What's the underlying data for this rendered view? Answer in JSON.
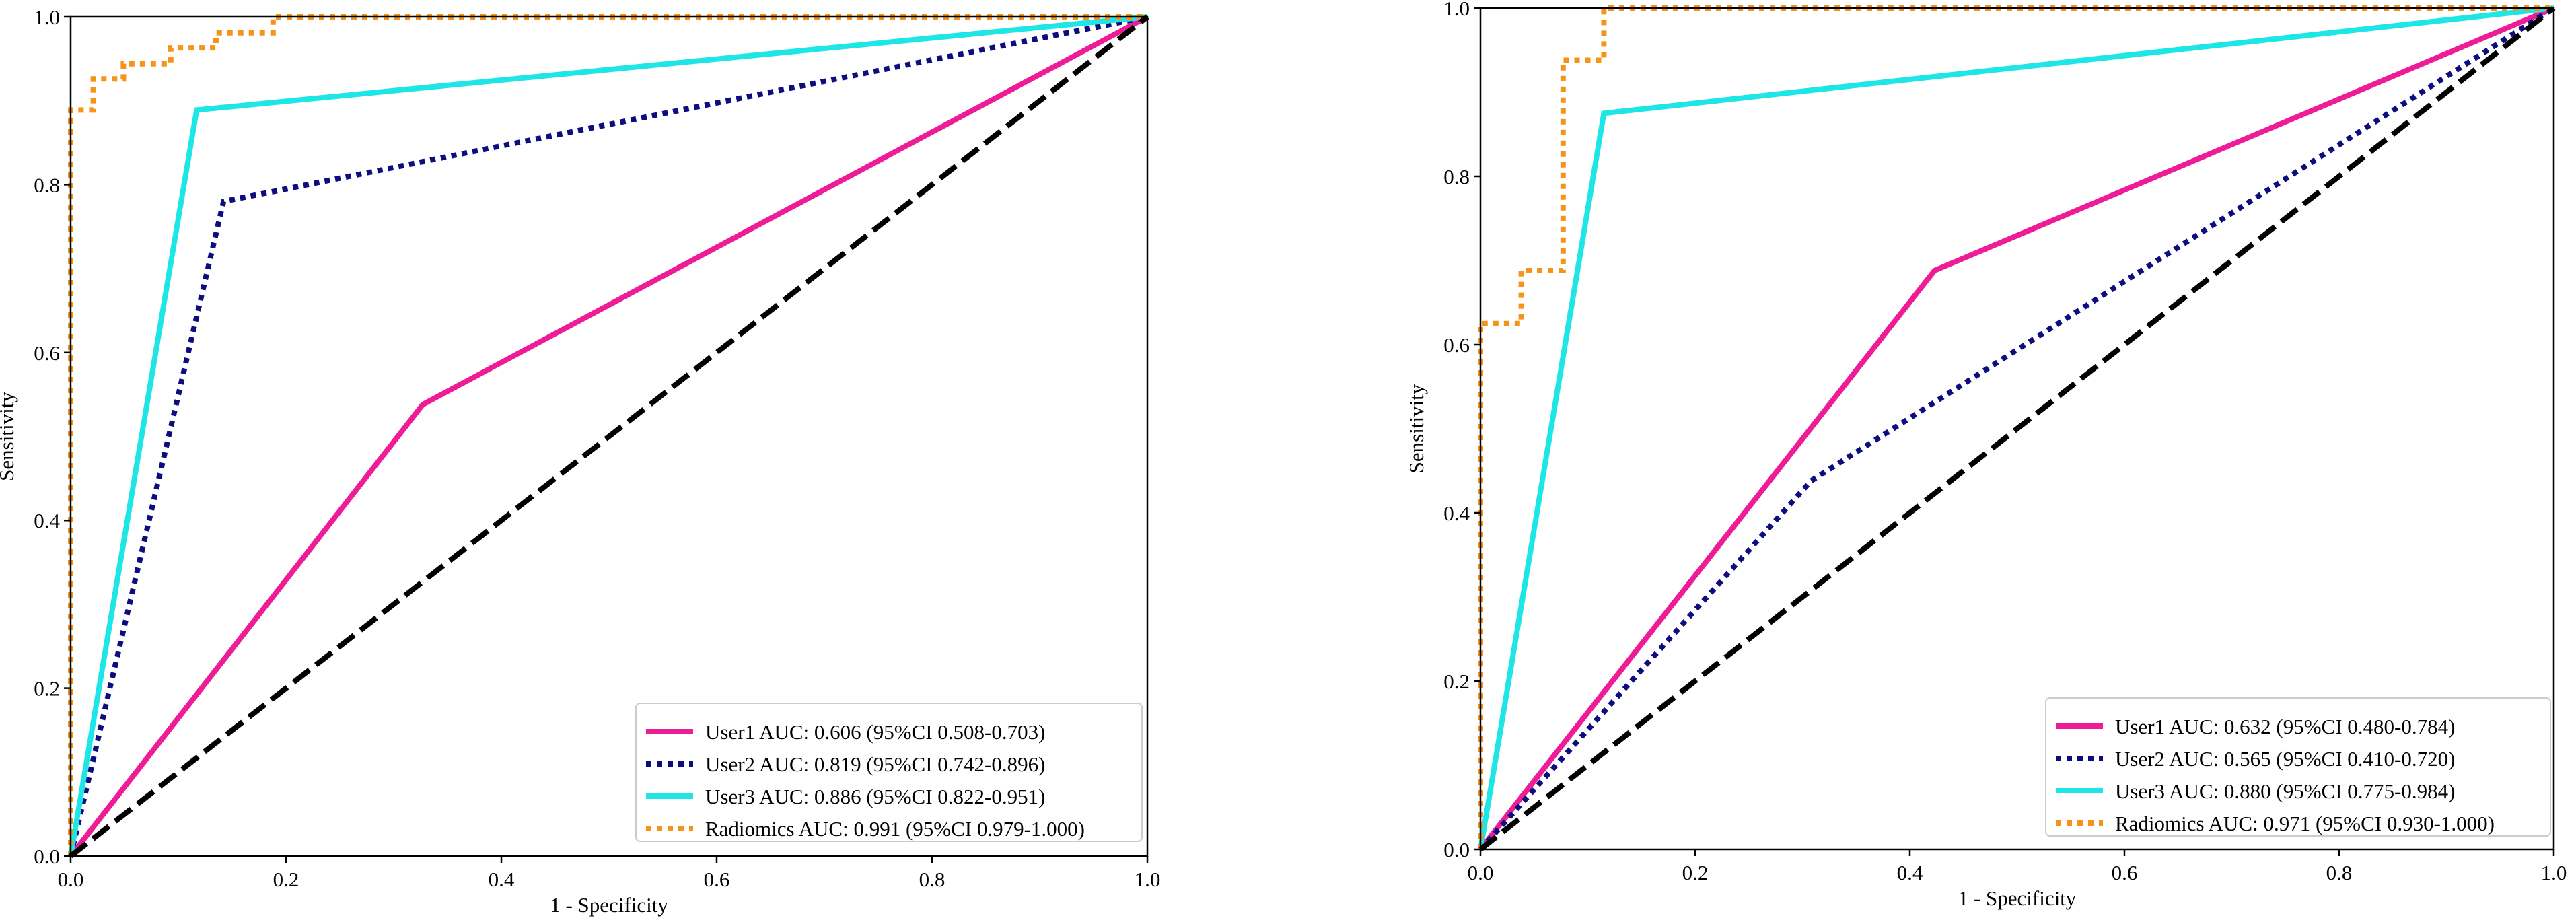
{
  "chart_data": [
    {
      "type": "line",
      "xlabel": "1 - Specificity",
      "ylabel": "Sensitivity",
      "xlim": [
        0.0,
        1.0
      ],
      "ylim": [
        0.0,
        1.0
      ],
      "xticks": [
        "0.0",
        "0.2",
        "0.4",
        "0.6",
        "0.8",
        "1.0"
      ],
      "yticks": [
        "0.0",
        "0.2",
        "0.4",
        "0.6",
        "0.8",
        "1.0"
      ],
      "grid": false,
      "legend_position": "lower-right",
      "series": [
        {
          "name": "User1 AUC: 0.606 (95%CI 0.508-0.703)",
          "color": "#ee1c97",
          "style": "solid",
          "points": [
            [
              0,
              0
            ],
            [
              0.327,
              0.538
            ],
            [
              1,
              1
            ]
          ]
        },
        {
          "name": "User2 AUC: 0.819 (95%CI 0.742-0.896)",
          "color": "#0d0d80",
          "style": "dotted",
          "points": [
            [
              0,
              0
            ],
            [
              0.142,
              0.78
            ],
            [
              1,
              1
            ]
          ]
        },
        {
          "name": "User3 AUC: 0.886 (95%CI 0.822-0.951)",
          "color": "#1ee6e6",
          "style": "solid",
          "points": [
            [
              0,
              0
            ],
            [
              0.117,
              0.889
            ],
            [
              1,
              1
            ]
          ]
        },
        {
          "name": "Radiomics AUC: 0.991 (95%CI 0.979-1.000)",
          "color": "#f59418",
          "style": "dotted",
          "points": [
            [
              0,
              0
            ],
            [
              0,
              0.889
            ],
            [
              0.021,
              0.889
            ],
            [
              0.021,
              0.926
            ],
            [
              0.049,
              0.926
            ],
            [
              0.049,
              0.944
            ],
            [
              0.093,
              0.944
            ],
            [
              0.093,
              0.963
            ],
            [
              0.135,
              0.963
            ],
            [
              0.135,
              0.981
            ],
            [
              0.188,
              0.981
            ],
            [
              0.188,
              1.0
            ],
            [
              1.0,
              1.0
            ]
          ]
        },
        {
          "name": "chance",
          "color": "#000000",
          "style": "dashed",
          "legend": false,
          "points": [
            [
              0,
              0
            ],
            [
              1,
              1
            ]
          ]
        }
      ]
    },
    {
      "type": "line",
      "xlabel": "1 - Specificity",
      "ylabel": "Sensitivity",
      "xlim": [
        0.0,
        1.0
      ],
      "ylim": [
        0.0,
        1.0
      ],
      "xticks": [
        "0.0",
        "0.2",
        "0.4",
        "0.6",
        "0.8",
        "1.0"
      ],
      "yticks": [
        "0.0",
        "0.2",
        "0.4",
        "0.6",
        "0.8",
        "1.0"
      ],
      "grid": false,
      "legend_position": "lower-right",
      "series": [
        {
          "name": "User1 AUC: 0.632 (95%CI 0.480-0.784)",
          "color": "#ee1c97",
          "style": "solid",
          "points": [
            [
              0,
              0
            ],
            [
              0.423,
              0.688
            ],
            [
              1,
              1
            ]
          ]
        },
        {
          "name": "User2 AUC: 0.565 (95%CI 0.410-0.720)",
          "color": "#0d0d80",
          "style": "dotted",
          "points": [
            [
              0,
              0
            ],
            [
              0.308,
              0.438
            ],
            [
              1,
              1
            ]
          ]
        },
        {
          "name": "User3 AUC: 0.880 (95%CI 0.775-0.984)",
          "color": "#1ee6e6",
          "style": "solid",
          "points": [
            [
              0,
              0
            ],
            [
              0.115,
              0.875
            ],
            [
              1,
              1
            ]
          ]
        },
        {
          "name": "Radiomics AUC: 0.971 (95%CI 0.930-1.000)",
          "color": "#f59418",
          "style": "dotted",
          "points": [
            [
              0,
              0
            ],
            [
              0,
              0.625
            ],
            [
              0.038,
              0.625
            ],
            [
              0.038,
              0.688
            ],
            [
              0.077,
              0.688
            ],
            [
              0.077,
              0.938
            ],
            [
              0.115,
              0.938
            ],
            [
              0.115,
              1.0
            ],
            [
              1.0,
              1.0
            ]
          ]
        },
        {
          "name": "chance",
          "color": "#000000",
          "style": "dashed",
          "legend": false,
          "points": [
            [
              0,
              0
            ],
            [
              1,
              1
            ]
          ]
        }
      ]
    }
  ]
}
